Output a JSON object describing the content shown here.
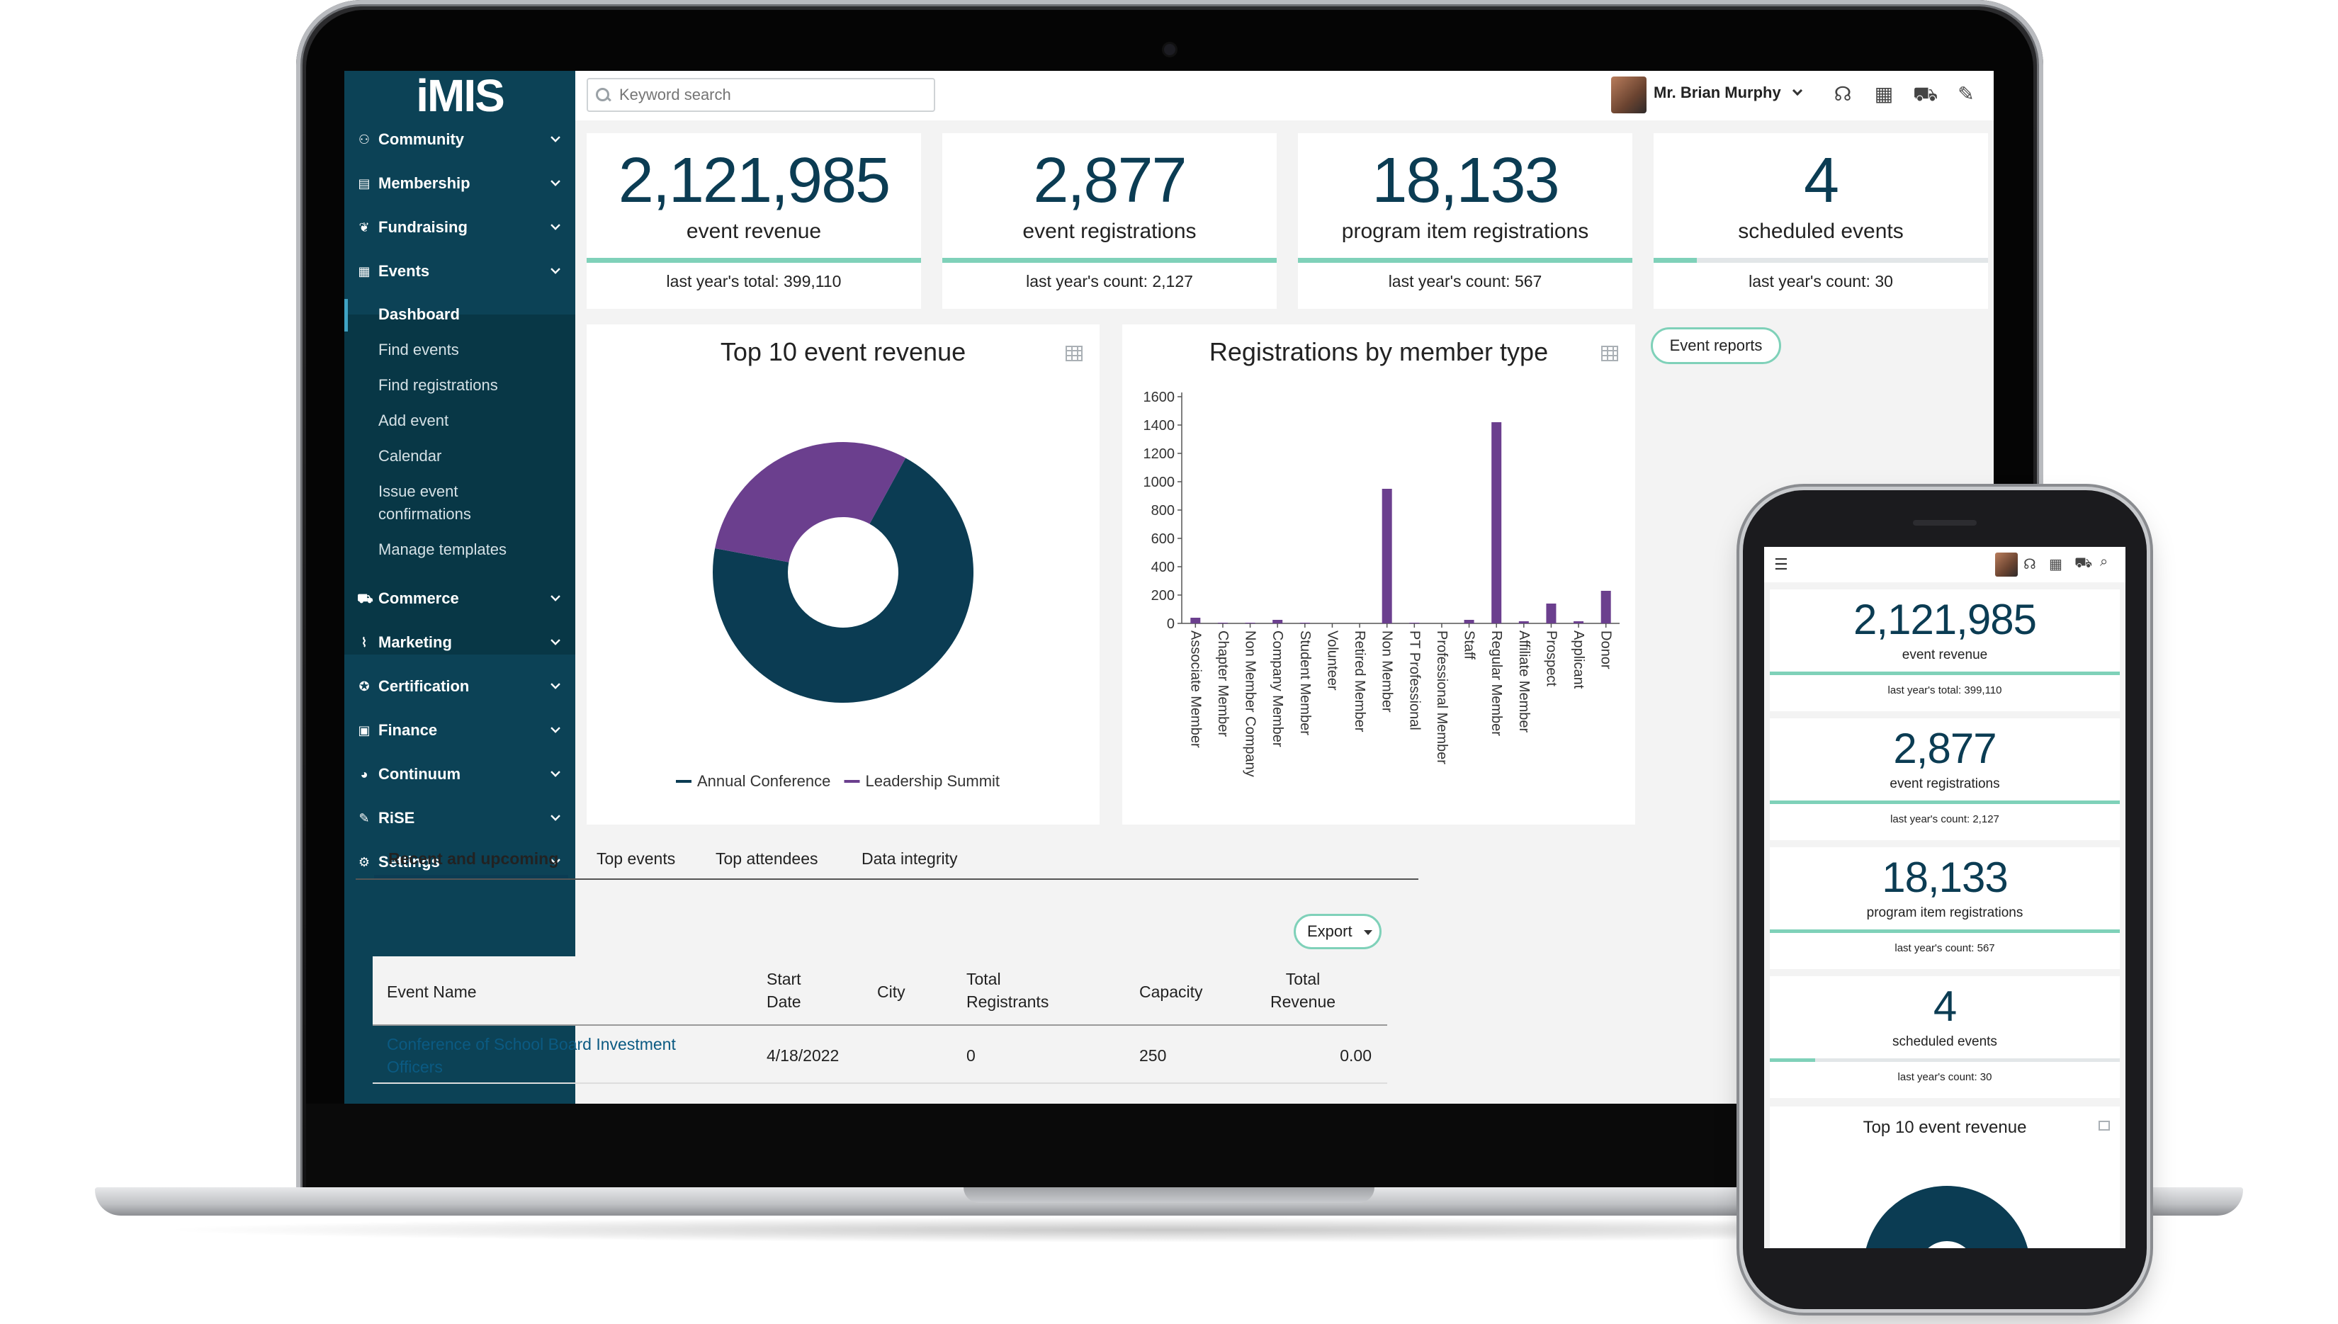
{
  "app": {
    "logo": "iMIS"
  },
  "sidebar": {
    "items": [
      {
        "label": "Community",
        "icon": "community-icon"
      },
      {
        "label": "Membership",
        "icon": "membership-icon"
      },
      {
        "label": "Fundraising",
        "icon": "fundraising-icon"
      },
      {
        "label": "Events",
        "icon": "calendar-icon"
      },
      {
        "label": "Commerce",
        "icon": "cart-icon"
      },
      {
        "label": "Marketing",
        "icon": "chart-line-icon"
      },
      {
        "label": "Certification",
        "icon": "ribbon-icon"
      },
      {
        "label": "Finance",
        "icon": "money-icon"
      },
      {
        "label": "Continuum",
        "icon": "pie-icon"
      },
      {
        "label": "RiSE",
        "icon": "edit-icon"
      },
      {
        "label": "Settings",
        "icon": "gear-icon"
      }
    ],
    "events_sub": [
      "Dashboard",
      "Find events",
      "Find registrations",
      "Add event",
      "Calendar",
      "Issue event confirmations",
      "Manage templates"
    ]
  },
  "header": {
    "search_placeholder": "Keyword search",
    "user_name": "Mr. Brian Murphy"
  },
  "kpis": [
    {
      "value": "2,121,985",
      "label": "event revenue",
      "sub": "last year's total: 399,110",
      "progress": 1.0
    },
    {
      "value": "2,877",
      "label": "event registrations",
      "sub": "last year's count: 2,127",
      "progress": 1.0
    },
    {
      "value": "18,133",
      "label": "program item registrations",
      "sub": "last year's count: 567",
      "progress": 1.0
    },
    {
      "value": "4",
      "label": "scheduled events",
      "sub": "last year's count: 30",
      "progress": 0.13
    }
  ],
  "panels": {
    "donut_title": "Top 10 event revenue",
    "bar_title": "Registrations by member type",
    "event_reports": "Event reports"
  },
  "chart_data": [
    {
      "type": "pie",
      "title": "Top 10 event revenue",
      "donut": true,
      "series": [
        {
          "name": "Annual Conference",
          "value": 70,
          "color": "#0b3c53"
        },
        {
          "name": "Leadership Summit",
          "value": 30,
          "color": "#6b3f8e"
        }
      ],
      "legend": "bottom"
    },
    {
      "type": "bar",
      "title": "Registrations by member type",
      "categories": [
        "Associate Member",
        "Chapter Member",
        "Non Member Company",
        "Company Member",
        "Student Member",
        "Volunteer",
        "Retired Member",
        "Non Member",
        "PT Professional",
        "Professional Member",
        "Staff",
        "Regular Member",
        "Affiliate Member",
        "Prospect",
        "Applicant",
        "Donor"
      ],
      "values": [
        40,
        5,
        5,
        25,
        5,
        0,
        0,
        950,
        5,
        0,
        25,
        1420,
        15,
        140,
        15,
        230
      ],
      "ylim": [
        0,
        1600
      ],
      "yticks": [
        0,
        200,
        400,
        600,
        800,
        1000,
        1200,
        1400,
        1600
      ],
      "color": "#6b3f8e"
    }
  ],
  "tabs": [
    "Recent and upcoming",
    "Top events",
    "Top attendees",
    "Data integrity"
  ],
  "table": {
    "export_label": "Export",
    "headers": [
      "Event Name",
      "Start Date",
      "City",
      "Total Registrants",
      "Capacity",
      "Total Revenue"
    ],
    "rows": [
      {
        "event": "Conference of School Board Investment Officers",
        "start": "4/18/2022",
        "city": "",
        "registrants": "0",
        "capacity": "250",
        "revenue": "0.00"
      }
    ]
  },
  "phone": {
    "cards": [
      {
        "value": "2,121,985",
        "label": "event revenue",
        "sub": "last year's total: 399,110",
        "progress": 1.0
      },
      {
        "value": "2,877",
        "label": "event registrations",
        "sub": "last year's count: 2,127",
        "progress": 1.0
      },
      {
        "value": "18,133",
        "label": "program item registrations",
        "sub": "last year's count: 567",
        "progress": 1.0
      },
      {
        "value": "4",
        "label": "scheduled events",
        "sub": "last year's count: 30",
        "progress": 0.13
      }
    ],
    "panel_title": "Top 10 event revenue"
  },
  "colors": {
    "navy": "#0b3c53",
    "purple": "#6b3f8e",
    "mint": "#7fd1b9",
    "sidebar": "#0c4256"
  }
}
